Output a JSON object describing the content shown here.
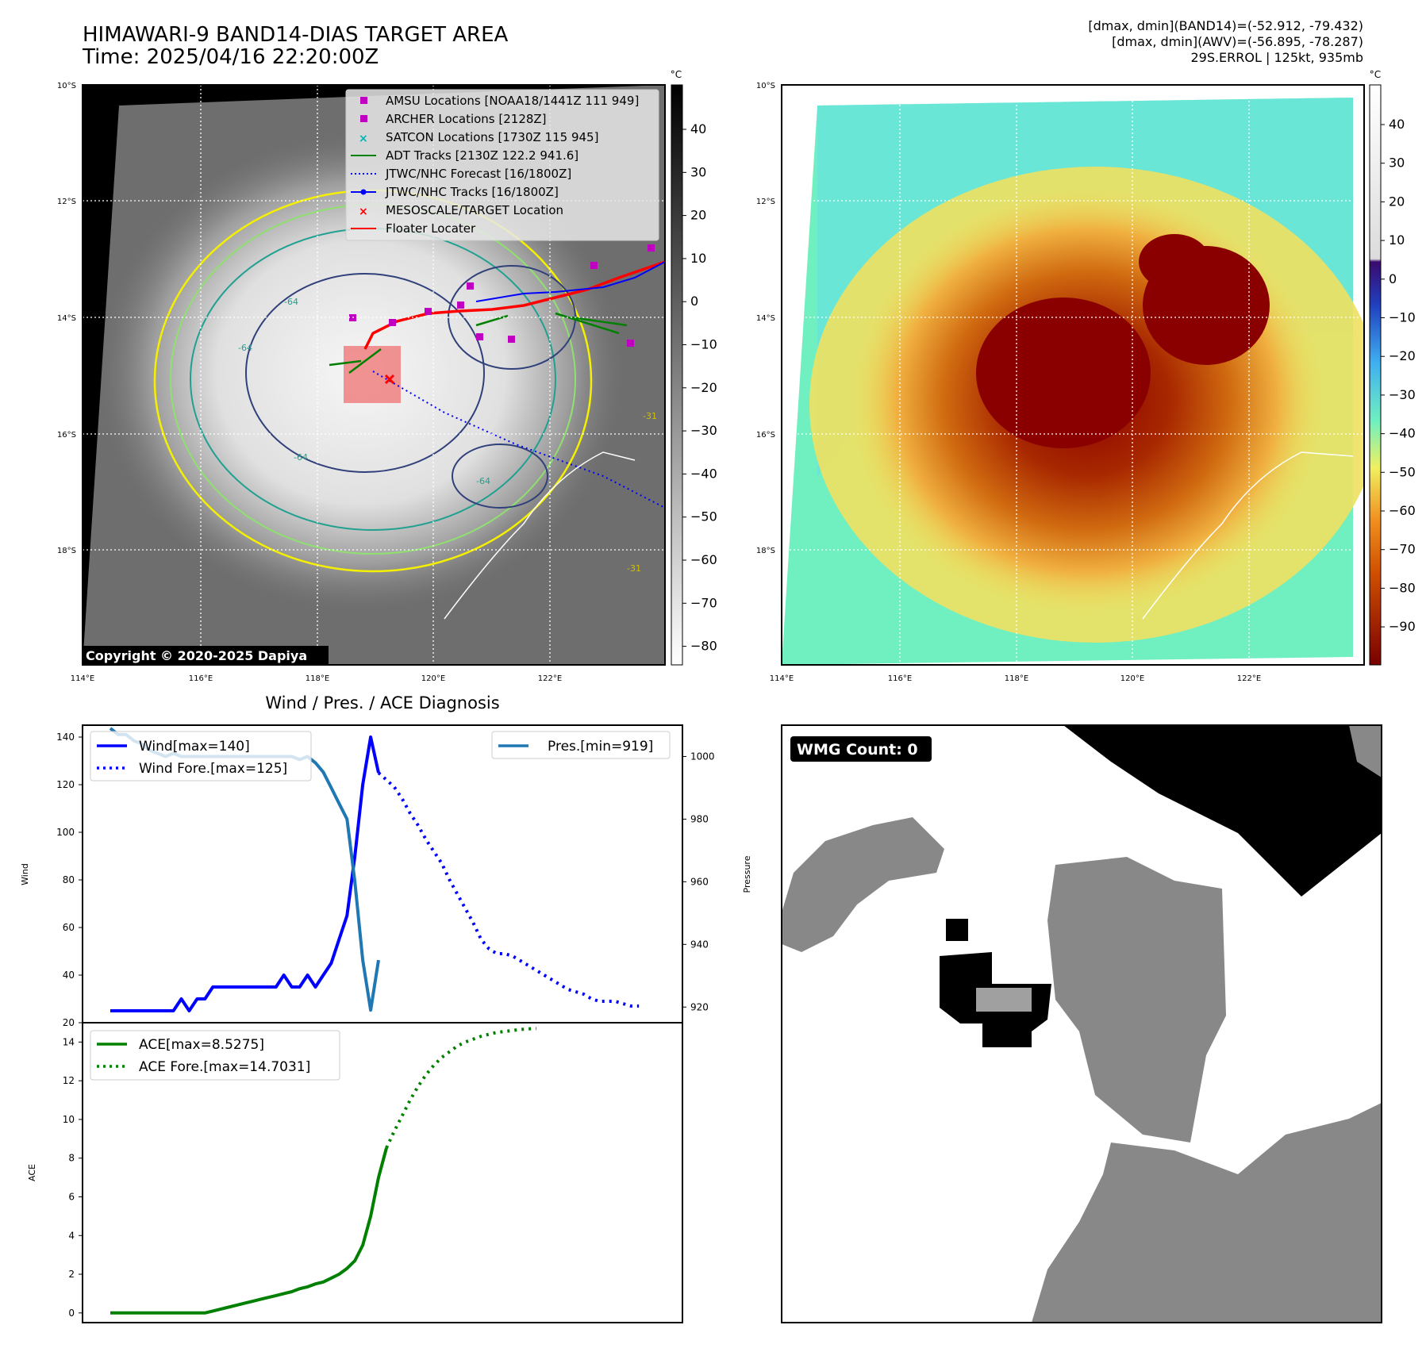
{
  "header": {
    "title": "HIMAWARI-9 BAND14-DIAS TARGET AREA",
    "time": "Time: 2025/04/16 22:20:00Z",
    "info_line1": "[dmax, dmin](BAND14)=(-52.912, -79.432)",
    "info_line2": "[dmax, dmin](AWV)=(-56.895, -78.287)",
    "info_line3": "29S.ERROL | 125kt, 935mb"
  },
  "map": {
    "lat_labels": [
      "10°S",
      "12°S",
      "14°S",
      "16°S",
      "18°S"
    ],
    "lon_labels": [
      "114°E",
      "116°E",
      "118°E",
      "120°E",
      "122°E"
    ],
    "copyright": "Copyright © 2020-2025 Dapiya",
    "contour_labels": [
      "-64",
      "-64",
      "-64",
      "-64",
      "-31",
      "-31"
    ],
    "legend": [
      {
        "label": "AMSU Locations [NOAA18/1441Z 111 949]",
        "color": "#c000c0",
        "marker": "square"
      },
      {
        "label": "ARCHER Locations [2128Z]",
        "color": "#c000c0",
        "marker": "square"
      },
      {
        "label": "SATCON Locations [1730Z 115 945]",
        "color": "#00b5b5",
        "marker": "x"
      },
      {
        "label": "ADT Tracks [2130Z 122.2 941.6]",
        "color": "#008000",
        "marker": "line"
      },
      {
        "label": "JTWC/NHC Forecast [16/1800Z]",
        "color": "#0000ff",
        "marker": "dotted"
      },
      {
        "label": "JTWC/NHC Tracks [16/1800Z]",
        "color": "#0000ff",
        "marker": "line-dot"
      },
      {
        "label": "MESOSCALE/TARGET Location",
        "color": "#ff0000",
        "marker": "x"
      },
      {
        "label": "Floater Locater",
        "color": "#ff0000",
        "marker": "line"
      }
    ],
    "colorbar_unit": "°C",
    "colorbar_left_ticks": [
      "40",
      "30",
      "20",
      "10",
      "0",
      "−10",
      "−20",
      "−30",
      "−40",
      "−50",
      "−60",
      "−70",
      "−80"
    ],
    "colorbar_right_ticks": [
      "40",
      "30",
      "20",
      "10",
      "0",
      "−10",
      "−20",
      "−30",
      "−40",
      "−50",
      "−60",
      "−70",
      "−80",
      "−90"
    ]
  },
  "diagnosis": {
    "title": "Wind / Pres. / ACE Diagnosis",
    "wind_ylabel": "Wind",
    "pres_ylabel": "Pressure",
    "ace_ylabel": "ACE",
    "legend_wind": "Wind[max=140]",
    "legend_wind_fore": "Wind Fore.[max=125]",
    "legend_pres": "Pres.[min=919]",
    "legend_ace": "ACE[max=8.5275]",
    "legend_ace_fore": "ACE Fore.[max=14.7031]"
  },
  "wmg": {
    "label": "WMG Count: 0"
  },
  "chart_data": [
    {
      "type": "line",
      "title": "Wind / Pres. / ACE Diagnosis",
      "ylabel": "Wind",
      "ylim": [
        20,
        145
      ],
      "yticks": [
        20,
        40,
        60,
        80,
        100,
        120,
        140
      ],
      "series": [
        {
          "name": "Wind[max=140]",
          "color": "#0000ff",
          "style": "solid",
          "values": [
            25,
            25,
            25,
            25,
            25,
            25,
            25,
            25,
            25,
            30,
            25,
            30,
            30,
            35,
            35,
            35,
            35,
            35,
            35,
            35,
            35,
            35,
            40,
            35,
            35,
            40,
            35,
            40,
            45,
            55,
            65,
            90,
            120,
            140,
            125
          ]
        },
        {
          "name": "Wind Fore.[max=125]",
          "color": "#0000ff",
          "style": "dotted",
          "x_start": 34,
          "values": [
            125,
            122,
            119,
            114,
            108,
            103,
            97,
            92,
            87,
            80,
            74,
            68,
            62,
            55,
            51,
            49,
            49,
            48,
            46,
            44,
            42,
            40,
            38,
            36,
            34,
            33,
            32,
            30,
            29,
            29,
            29,
            28,
            27,
            27
          ]
        }
      ]
    },
    {
      "type": "line",
      "ylabel": "Pressure",
      "ylim": [
        915,
        1010
      ],
      "yticks": [
        920,
        940,
        960,
        980,
        1000
      ],
      "series": [
        {
          "name": "Pres.[min=919]",
          "color": "#1f77b4",
          "style": "solid",
          "values": [
            1009,
            1007,
            1007,
            1005,
            1004,
            1002,
            1001,
            1000,
            1001,
            1000,
            1000,
            1000,
            1000,
            1000,
            1000,
            1000,
            1000,
            1000,
            1000,
            1000,
            1000,
            1000,
            1000,
            1000,
            999,
            1000,
            998,
            995,
            990,
            985,
            980,
            960,
            935,
            919,
            935
          ]
        }
      ]
    },
    {
      "type": "line",
      "ylabel": "ACE",
      "ylim": [
        -0.5,
        15
      ],
      "yticks": [
        0,
        2,
        4,
        6,
        8,
        10,
        12,
        14
      ],
      "series": [
        {
          "name": "ACE[max=8.5275]",
          "color": "#008000",
          "style": "solid",
          "values": [
            0,
            0,
            0,
            0,
            0,
            0,
            0,
            0,
            0,
            0,
            0,
            0,
            0,
            0.1,
            0.2,
            0.3,
            0.4,
            0.5,
            0.6,
            0.7,
            0.8,
            0.9,
            1.0,
            1.1,
            1.25,
            1.35,
            1.5,
            1.6,
            1.8,
            2.0,
            2.3,
            2.7,
            3.5,
            5.0,
            7.0,
            8.53
          ]
        },
        {
          "name": "ACE Fore.[max=14.7031]",
          "color": "#008000",
          "style": "dotted",
          "x_start": 35,
          "values": [
            8.53,
            9.4,
            10.2,
            11.0,
            11.7,
            12.3,
            12.8,
            13.2,
            13.5,
            13.8,
            14.0,
            14.15,
            14.3,
            14.4,
            14.5,
            14.55,
            14.6,
            14.65,
            14.68,
            14.7
          ]
        }
      ]
    }
  ]
}
